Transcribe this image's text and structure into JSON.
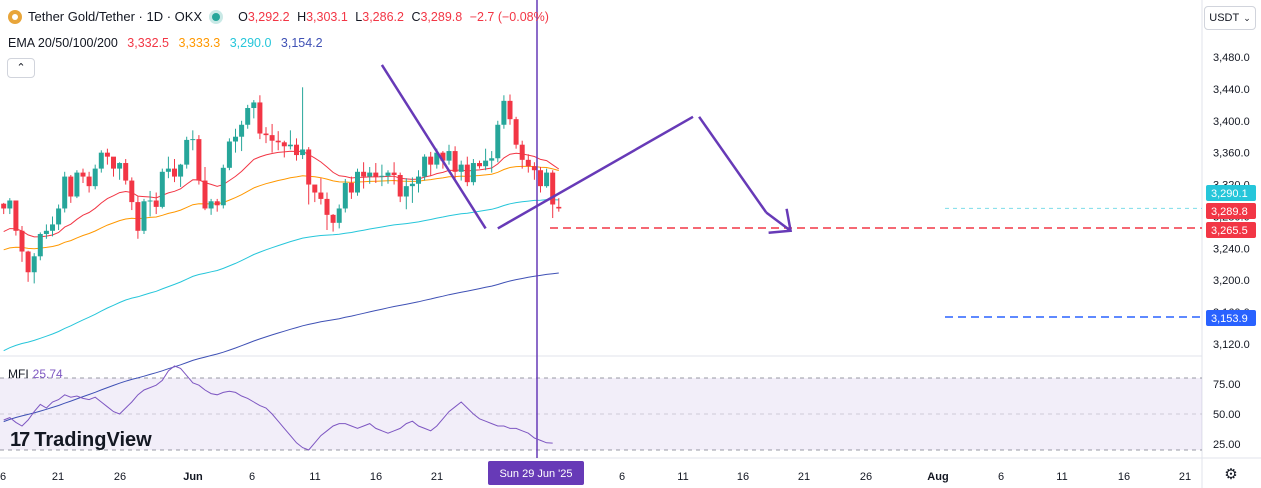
{
  "header": {
    "symbol": "Tether Gold/Tether · 1D · OKX",
    "ohlc": [
      {
        "k": "O",
        "v": "3,292.2"
      },
      {
        "k": "H",
        "v": "3,303.1"
      },
      {
        "k": "L",
        "v": "3,286.2"
      },
      {
        "k": "C",
        "v": "3,289.8"
      },
      {
        "k": "",
        "v": "−2.7 (−0.08%)"
      }
    ]
  },
  "ema_legend": {
    "label": "EMA 20/50/100/200",
    "values": [
      {
        "v": "3,332.5",
        "color": "#f23645"
      },
      {
        "v": "3,333.3",
        "color": "#ff9800"
      },
      {
        "v": "3,290.0",
        "color": "#26c6da"
      },
      {
        "v": "3,154.2",
        "color": "#3f51b5"
      }
    ]
  },
  "currency_button": "USDT",
  "collapse_icon": "chevron-up-icon",
  "mfi_legend": {
    "label": "MFI",
    "value": "25.74"
  },
  "logo_text": "TradingView",
  "settings_icon": "gear-icon",
  "crosshair_date_label": "Sun 29 Jun '25",
  "chart_data": {
    "type": "candlestick",
    "price_axis": {
      "ticks": [
        3120,
        3160,
        3200,
        3240,
        3280,
        3320,
        3360,
        3400,
        3440,
        3480
      ],
      "tick_labels": [
        "3,120.0",
        "3,160.0",
        "3,200.0",
        "3,240.0",
        "3,280.0",
        "3,320.0",
        "3,360.0",
        "3,400.0",
        "3,440.0",
        "3,480.0"
      ],
      "range": [
        3100,
        3500
      ]
    },
    "time_axis": {
      "labels": [
        "6",
        "21",
        "26",
        "Jun",
        "6",
        "11",
        "16",
        "21",
        "26",
        "1",
        "6",
        "11",
        "16",
        "21",
        "26",
        "Aug",
        "6",
        "11",
        "16",
        "21"
      ]
    },
    "badges": [
      {
        "value": 3290.1,
        "text": "3,290.1",
        "color": "#26c6da"
      },
      {
        "value": 3289.8,
        "text": "3,289.8",
        "color": "#f23645"
      },
      {
        "value": 3265.5,
        "text": "3,265.5",
        "color": "#f23645"
      },
      {
        "value": 3153.9,
        "text": "3,153.9",
        "color": "#2962ff"
      }
    ],
    "horizontal_levels": [
      {
        "value": 3265.5,
        "color": "#f23645",
        "style": "dashed"
      },
      {
        "value": 3153.9,
        "color": "#2962ff",
        "style": "dashed"
      },
      {
        "value": 3290.1,
        "color": "#26c6da",
        "style": "dashed"
      }
    ],
    "candles": [
      [
        3296,
        3297,
        3283,
        3290
      ],
      [
        3290,
        3303,
        3283,
        3300
      ],
      [
        3300,
        3298,
        3256,
        3262
      ],
      [
        3262,
        3268,
        3223,
        3236
      ],
      [
        3236,
        3237,
        3198,
        3210
      ],
      [
        3210,
        3234,
        3196,
        3230
      ],
      [
        3230,
        3260,
        3225,
        3258
      ],
      [
        3258,
        3270,
        3252,
        3262
      ],
      [
        3262,
        3280,
        3255,
        3270
      ],
      [
        3270,
        3295,
        3263,
        3290
      ],
      [
        3290,
        3336,
        3285,
        3330
      ],
      [
        3330,
        3332,
        3297,
        3305
      ],
      [
        3305,
        3338,
        3303,
        3335
      ],
      [
        3335,
        3340,
        3322,
        3330
      ],
      [
        3330,
        3336,
        3310,
        3318
      ],
      [
        3318,
        3345,
        3314,
        3340
      ],
      [
        3340,
        3363,
        3335,
        3360
      ],
      [
        3360,
        3365,
        3345,
        3355
      ],
      [
        3355,
        3353,
        3330,
        3340
      ],
      [
        3340,
        3348,
        3326,
        3347
      ],
      [
        3347,
        3352,
        3320,
        3325
      ],
      [
        3325,
        3329,
        3288,
        3298
      ],
      [
        3298,
        3305,
        3252,
        3262
      ],
      [
        3262,
        3302,
        3258,
        3299
      ],
      [
        3299,
        3312,
        3280,
        3300
      ],
      [
        3300,
        3310,
        3283,
        3292
      ],
      [
        3292,
        3340,
        3290,
        3336
      ],
      [
        3336,
        3355,
        3328,
        3340
      ],
      [
        3340,
        3352,
        3323,
        3330
      ],
      [
        3330,
        3346,
        3317,
        3345
      ],
      [
        3345,
        3380,
        3340,
        3376
      ],
      [
        3376,
        3388,
        3363,
        3377
      ],
      [
        3377,
        3382,
        3320,
        3325
      ],
      [
        3325,
        3342,
        3288,
        3290
      ],
      [
        3290,
        3302,
        3282,
        3299
      ],
      [
        3299,
        3302,
        3286,
        3294
      ],
      [
        3294,
        3345,
        3290,
        3341
      ],
      [
        3341,
        3378,
        3338,
        3374
      ],
      [
        3374,
        3390,
        3360,
        3380
      ],
      [
        3380,
        3400,
        3362,
        3395
      ],
      [
        3395,
        3420,
        3390,
        3416
      ],
      [
        3416,
        3426,
        3403,
        3423
      ],
      [
        3423,
        3432,
        3377,
        3384
      ],
      [
        3384,
        3392,
        3372,
        3382
      ],
      [
        3382,
        3396,
        3360,
        3375
      ],
      [
        3375,
        3387,
        3363,
        3373
      ],
      [
        3373,
        3375,
        3354,
        3368
      ],
      [
        3368,
        3388,
        3364,
        3370
      ],
      [
        3370,
        3378,
        3350,
        3357
      ],
      [
        3357,
        3442,
        3352,
        3364
      ],
      [
        3364,
        3367,
        3295,
        3320
      ],
      [
        3320,
        3318,
        3298,
        3310
      ],
      [
        3310,
        3328,
        3295,
        3302
      ],
      [
        3302,
        3310,
        3263,
        3282
      ],
      [
        3282,
        3283,
        3261,
        3272
      ],
      [
        3272,
        3295,
        3265,
        3290
      ],
      [
        3290,
        3327,
        3285,
        3322
      ],
      [
        3322,
        3330,
        3302,
        3310
      ],
      [
        3310,
        3340,
        3306,
        3336
      ],
      [
        3336,
        3348,
        3315,
        3330
      ],
      [
        3330,
        3342,
        3321,
        3335
      ],
      [
        3335,
        3347,
        3322,
        3330
      ],
      [
        3330,
        3345,
        3318,
        3331
      ],
      [
        3331,
        3338,
        3321,
        3335
      ],
      [
        3335,
        3348,
        3320,
        3332
      ],
      [
        3332,
        3335,
        3298,
        3305
      ],
      [
        3305,
        3328,
        3289,
        3318
      ],
      [
        3318,
        3329,
        3297,
        3321
      ],
      [
        3321,
        3338,
        3310,
        3330
      ],
      [
        3330,
        3358,
        3325,
        3355
      ],
      [
        3355,
        3361,
        3331,
        3345
      ],
      [
        3345,
        3365,
        3340,
        3360
      ],
      [
        3360,
        3362,
        3340,
        3350
      ],
      [
        3350,
        3370,
        3345,
        3362
      ],
      [
        3362,
        3368,
        3324,
        3336
      ],
      [
        3336,
        3350,
        3325,
        3345
      ],
      [
        3345,
        3355,
        3318,
        3323
      ],
      [
        3323,
        3352,
        3319,
        3347
      ],
      [
        3347,
        3350,
        3340,
        3343
      ],
      [
        3343,
        3365,
        3338,
        3350
      ],
      [
        3350,
        3362,
        3335,
        3353
      ],
      [
        3353,
        3400,
        3348,
        3395
      ],
      [
        3395,
        3432,
        3390,
        3425
      ],
      [
        3425,
        3433,
        3395,
        3402
      ],
      [
        3402,
        3405,
        3365,
        3370
      ],
      [
        3370,
        3375,
        3340,
        3351
      ],
      [
        3351,
        3358,
        3335,
        3343
      ],
      [
        3343,
        3348,
        3326,
        3338
      ],
      [
        3338,
        3342,
        3310,
        3318
      ],
      [
        3318,
        3340,
        3316,
        3335
      ],
      [
        3335,
        3338,
        3278,
        3295
      ],
      [
        3292,
        3303,
        3286,
        3290
      ]
    ],
    "ema_series": [
      {
        "name": "EMA 20",
        "color": "#f23645",
        "last": 3332.5
      },
      {
        "name": "EMA 50",
        "color": "#ff9800",
        "last": 3333.3
      },
      {
        "name": "EMA 100",
        "color": "#26c6da",
        "last": 3290.0
      },
      {
        "name": "EMA 200",
        "color": "#3f51b5",
        "last": 3154.2
      }
    ],
    "trend_arrows": [
      {
        "from_index": 62,
        "from_price": 3470,
        "to_index": 79,
        "to_price": 3265
      },
      {
        "from_index": 81,
        "from_price": 3265,
        "to_index": 113,
        "to_price": 3405
      },
      {
        "from_index": 114,
        "from_price": 3405,
        "to_index": 125,
        "to_price": 3285
      },
      {
        "from_index": 125,
        "from_price": 3285,
        "to_index": 129,
        "to_price": 3262
      }
    ],
    "mfi": {
      "ticks": [
        25,
        50,
        75
      ],
      "tick_labels": [
        "25.00",
        "50.00",
        "75.00"
      ],
      "bands": [
        20,
        80
      ],
      "values": [
        45,
        47,
        43,
        40,
        45,
        52,
        58,
        55,
        60,
        62,
        66,
        64,
        65,
        63,
        62,
        64,
        60,
        56,
        52,
        50,
        55,
        60,
        66,
        70,
        72,
        74,
        78,
        86,
        90,
        88,
        82,
        76,
        74,
        70,
        67,
        66,
        68,
        69,
        68,
        65,
        63,
        60,
        57,
        55,
        50,
        44,
        38,
        32,
        26,
        22,
        20,
        26,
        32,
        36,
        40,
        42,
        42,
        40,
        38,
        40,
        42,
        38,
        36,
        34,
        36,
        38,
        42,
        44,
        40,
        38,
        36,
        40,
        46,
        52,
        56,
        60,
        55,
        50,
        46,
        44,
        42,
        40,
        40,
        38,
        38,
        36,
        34,
        30,
        28,
        26,
        25.74
      ]
    }
  }
}
